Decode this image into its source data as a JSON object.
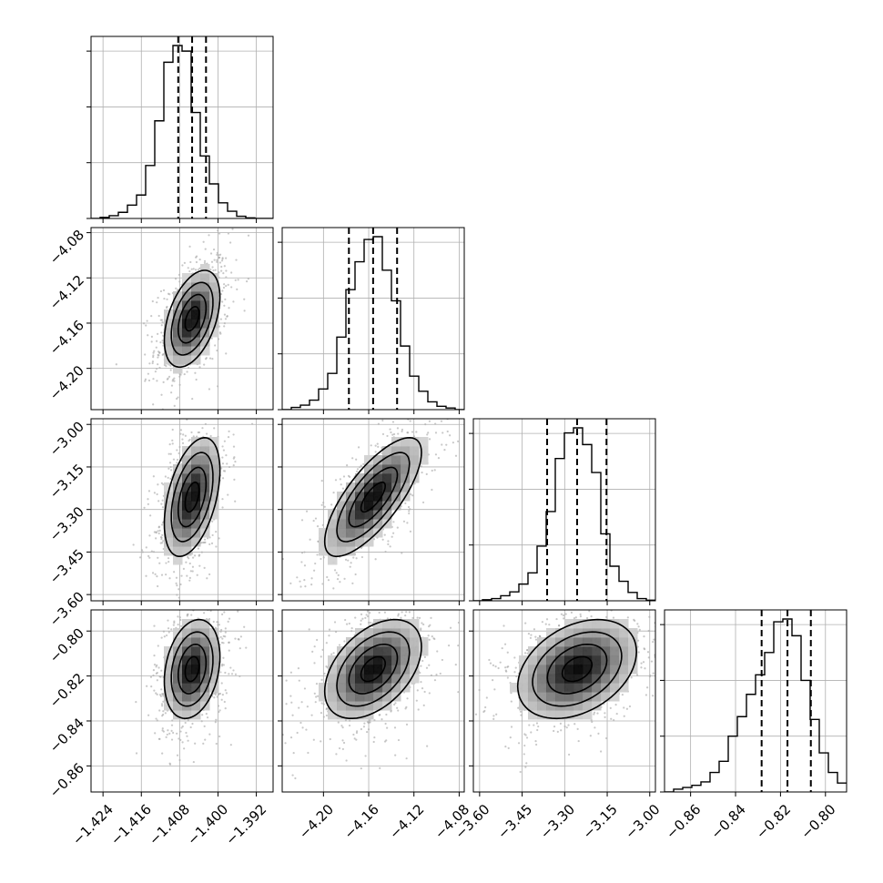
{
  "chart_data": {
    "type": "corner",
    "n_params": 4,
    "colors": {
      "frame": "#000000",
      "grid": "#b0b0b0",
      "contour": "#000000",
      "scatter": "#9a9a9a"
    },
    "axes": [
      {
        "range": [
          -1.4265,
          -1.3885
        ],
        "ticks": [
          -1.424,
          -1.416,
          -1.408,
          -1.4,
          -1.392
        ],
        "tick_labels": [
          "−1.424",
          "−1.416",
          "−1.408",
          "−1.400",
          "−1.392"
        ]
      },
      {
        "range": [
          -4.2365,
          -4.0755
        ],
        "ticks": [
          -4.2,
          -4.16,
          -4.12,
          -4.08
        ],
        "tick_labels": [
          "−4.20",
          "−4.16",
          "−4.12",
          "−4.08"
        ]
      },
      {
        "range": [
          -3.622,
          -2.98
        ],
        "ticks": [
          -3.6,
          -3.45,
          -3.3,
          -3.15,
          -3.0
        ],
        "tick_labels": [
          "−3.60",
          "−3.45",
          "−3.30",
          "−3.15",
          "−3.00"
        ]
      },
      {
        "range": [
          -0.8716,
          -0.7906
        ],
        "ticks": [
          -0.86,
          -0.84,
          -0.82,
          -0.8
        ],
        "tick_labels": [
          "−0.86",
          "−0.84",
          "−0.82",
          "−0.80"
        ]
      }
    ],
    "marginals": [
      {
        "param": 0,
        "quantiles": [
          -1.4083,
          -1.4054,
          -1.4025
        ],
        "bin_edges": [
          -1.4265,
          -1.4246,
          -1.4227,
          -1.4208,
          -1.4189,
          -1.417,
          -1.4151,
          -1.4132,
          -1.4113,
          -1.4094,
          -1.4075,
          -1.4056,
          -1.4037,
          -1.4018,
          -1.3999,
          -1.398,
          -1.3961,
          -1.3942,
          -1.3923,
          -1.3904,
          -1.3885
        ],
        "counts": [
          0,
          2,
          5,
          11,
          24,
          42,
          95,
          175,
          280,
          310,
          300,
          190,
          112,
          62,
          28,
          13,
          4,
          1,
          0,
          0
        ]
      },
      {
        "param": 1,
        "quantiles": [
          -4.1775,
          -4.1561,
          -4.1349
        ],
        "bin_edges": [
          -4.2365,
          -4.22845,
          -4.2204,
          -4.21235,
          -4.2043,
          -4.19625,
          -4.1882,
          -4.18015,
          -4.1721,
          -4.16405,
          -4.156,
          -4.14795,
          -4.1399,
          -4.13185,
          -4.1238,
          -4.11575,
          -4.1077,
          -4.09965,
          -4.0916,
          -4.08355,
          -4.0755
        ],
        "counts": [
          0,
          4,
          8,
          17,
          37,
          65,
          130,
          215,
          265,
          305,
          310,
          250,
          195,
          114,
          60,
          33,
          14,
          6,
          3,
          0
        ]
      },
      {
        "param": 2,
        "quantiles": [
          -3.3619,
          -3.2562,
          -3.1525
        ],
        "bin_edges": [
          -3.622,
          -3.5899,
          -3.5578,
          -3.5257,
          -3.4936,
          -3.4615,
          -3.4294,
          -3.3973,
          -3.3652,
          -3.3331,
          -3.301,
          -3.2689,
          -3.2368,
          -3.2047,
          -3.1726,
          -3.1405,
          -3.1084,
          -3.0763,
          -3.0442,
          -3.0121,
          -2.98
        ],
        "counts": [
          0,
          2,
          4,
          9,
          16,
          30,
          50,
          98,
          160,
          255,
          301,
          310,
          280,
          230,
          120,
          62,
          35,
          15,
          4,
          1
        ]
      },
      {
        "param": 3,
        "quantiles": [
          -0.8284,
          -0.8169,
          -0.8065
        ],
        "bin_edges": [
          -0.8716,
          -0.86755,
          -0.8635,
          -0.85945,
          -0.8554,
          -0.85135,
          -0.8473,
          -0.84325,
          -0.8392,
          -0.83515,
          -0.8311,
          -0.82705,
          -0.823,
          -0.81895,
          -0.8149,
          -0.81085,
          -0.8068,
          -0.80275,
          -0.7987,
          -0.79465,
          -0.7906
        ],
        "counts": [
          0,
          5,
          8,
          12,
          18,
          35,
          55,
          100,
          135,
          175,
          210,
          250,
          305,
          310,
          280,
          200,
          130,
          70,
          35,
          16
        ]
      }
    ],
    "pairs": [
      {
        "x": 0,
        "y": 1,
        "mean": [
          -1.4054,
          -4.1561
        ],
        "sd": [
          0.0029,
          0.0214
        ],
        "rho": 0.45
      },
      {
        "x": 0,
        "y": 2,
        "mean": [
          -1.4054,
          -3.2562
        ],
        "sd": [
          0.0029,
          0.1047
        ],
        "rho": 0.45
      },
      {
        "x": 0,
        "y": 3,
        "mean": [
          -1.4054,
          -0.8169
        ],
        "sd": [
          0.0029,
          0.011
        ],
        "rho": 0.25
      },
      {
        "x": 1,
        "y": 2,
        "mean": [
          -4.1561,
          -3.2562
        ],
        "sd": [
          0.0214,
          0.1047
        ],
        "rho": 0.75
      },
      {
        "x": 1,
        "y": 3,
        "mean": [
          -4.1561,
          -0.8169
        ],
        "sd": [
          0.0214,
          0.011
        ],
        "rho": 0.45
      },
      {
        "x": 2,
        "y": 3,
        "mean": [
          -3.2562,
          -0.8169
        ],
        "sd": [
          0.1047,
          0.011
        ],
        "rho": 0.35
      }
    ],
    "contour_levels_sigma": [
      0.5,
      1.0,
      1.5,
      2.0
    ],
    "grid": true,
    "marginal_y_ticklabels": false
  }
}
